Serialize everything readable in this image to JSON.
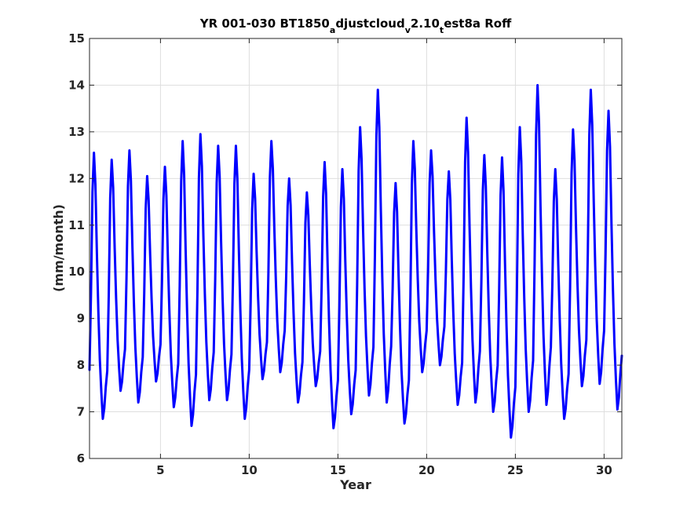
{
  "chart_data": {
    "type": "line",
    "title": {
      "parts": [
        {
          "text": "YR 001-030 BT1850",
          "shift": "normal"
        },
        {
          "text": "a",
          "shift": "sub"
        },
        {
          "text": "djustcloud",
          "shift": "normal"
        },
        {
          "text": "v",
          "shift": "sub"
        },
        {
          "text": "2.10",
          "shift": "normal"
        },
        {
          "text": "t",
          "shift": "sub"
        },
        {
          "text": "est8a Roff",
          "shift": "normal"
        }
      ]
    },
    "xlabel": "Year",
    "ylabel": "(mm/month)",
    "xlim": [
      1,
      31
    ],
    "ylim": [
      6,
      15
    ],
    "xticks": [
      5,
      10,
      15,
      20,
      25,
      30
    ],
    "yticks": [
      6,
      7,
      8,
      9,
      10,
      11,
      12,
      13,
      14,
      15
    ],
    "grid": true,
    "series": [
      {
        "color": "#0000ff",
        "annual_cycles": [
          {
            "year": 1,
            "start": 7.9,
            "peak": 12.55,
            "min": 6.85
          },
          {
            "year": 2,
            "peak": 12.4,
            "min": 7.45
          },
          {
            "year": 3,
            "peak": 12.6,
            "min": 7.2
          },
          {
            "year": 4,
            "peak": 12.05,
            "min": 7.65
          },
          {
            "year": 5,
            "peak": 12.25,
            "min": 7.1
          },
          {
            "year": 6,
            "peak": 12.8,
            "min": 6.7
          },
          {
            "year": 7,
            "peak": 12.95,
            "min": 7.25
          },
          {
            "year": 8,
            "peak": 12.7,
            "min": 7.25
          },
          {
            "year": 9,
            "peak": 12.7,
            "min": 6.85
          },
          {
            "year": 10,
            "peak": 12.1,
            "min": 7.7
          },
          {
            "year": 11,
            "peak": 12.8,
            "min": 7.85
          },
          {
            "year": 12,
            "peak": 12.0,
            "min": 7.2
          },
          {
            "year": 13,
            "peak": 11.7,
            "min": 7.55
          },
          {
            "year": 14,
            "peak": 12.35,
            "min": 6.65
          },
          {
            "year": 15,
            "peak": 12.2,
            "min": 6.95
          },
          {
            "year": 16,
            "peak": 13.1,
            "min": 7.35
          },
          {
            "year": 17,
            "peak": 13.9,
            "min": 7.2
          },
          {
            "year": 18,
            "peak": 11.9,
            "min": 6.75
          },
          {
            "year": 19,
            "peak": 12.8,
            "min": 7.85
          },
          {
            "year": 20,
            "peak": 12.6,
            "min": 8.0
          },
          {
            "year": 21,
            "peak": 12.15,
            "min": 7.15
          },
          {
            "year": 22,
            "peak": 13.3,
            "min": 7.2
          },
          {
            "year": 23,
            "peak": 12.5,
            "min": 7.0
          },
          {
            "year": 24,
            "peak": 12.45,
            "min": 6.45
          },
          {
            "year": 25,
            "peak": 13.1,
            "min": 7.0
          },
          {
            "year": 26,
            "peak": 14.0,
            "min": 7.15
          },
          {
            "year": 27,
            "peak": 12.2,
            "min": 6.85
          },
          {
            "year": 28,
            "peak": 13.05,
            "min": 7.55
          },
          {
            "year": 29,
            "peak": 13.9,
            "min": 7.6
          },
          {
            "year": 30,
            "peak": 13.45,
            "min": 7.05
          }
        ]
      }
    ]
  }
}
